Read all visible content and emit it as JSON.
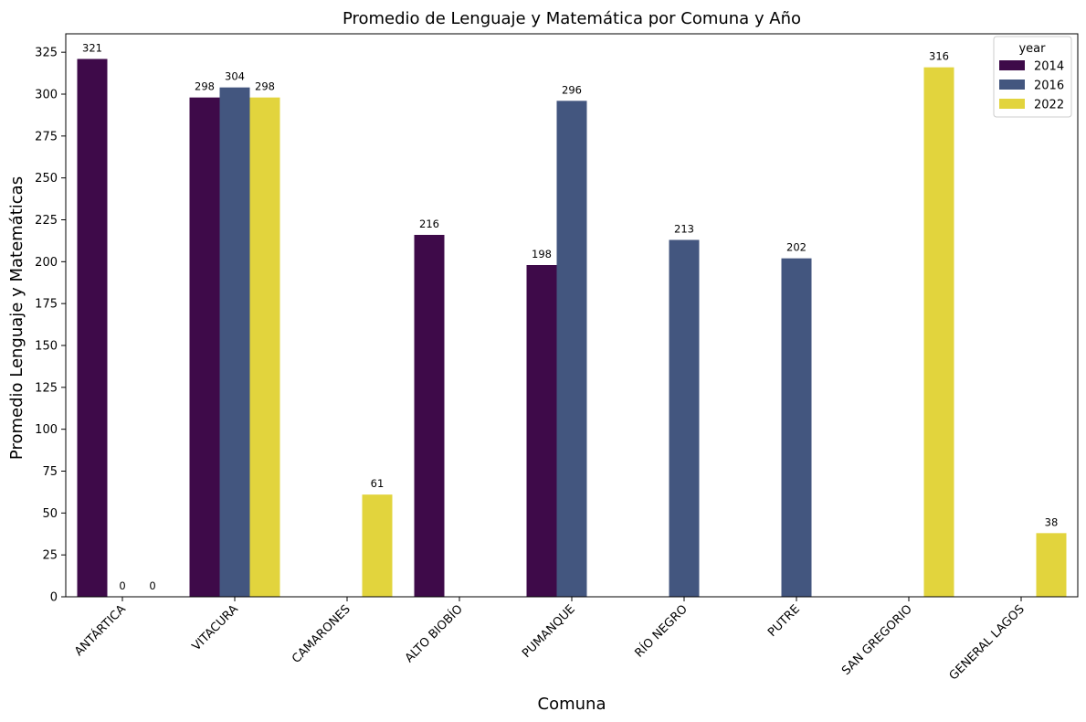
{
  "chart_data": {
    "type": "bar",
    "title": "Promedio de Lenguaje y Matemática por Comuna y Año",
    "xlabel": "Comuna",
    "ylabel": "Promedio Lenguaje y Matemáticas",
    "ylim": [
      0,
      336
    ],
    "yticks": [
      0,
      25,
      50,
      75,
      100,
      125,
      150,
      175,
      200,
      225,
      250,
      275,
      300,
      325
    ],
    "categories": [
      "ANTÁRTICA",
      "VITACURA",
      "CAMARONES",
      "ALTO BIOBÍO",
      "PUMANQUE",
      "RÍO NEGRO",
      "PUTRE",
      "SAN GREGORIO",
      "GENERAL LAGOS"
    ],
    "legend_title": "year",
    "legend_position": "top-right",
    "grid": false,
    "series": [
      {
        "name": "2014",
        "color": "#440154",
        "bar_color": "#3e0a49",
        "values": [
          321,
          298,
          null,
          216,
          198,
          null,
          null,
          null,
          null
        ],
        "labels": [
          "321",
          "298",
          null,
          "216",
          "198",
          null,
          null,
          null,
          null
        ]
      },
      {
        "name": "2016",
        "color": "#3b528b",
        "bar_color": "#43567f",
        "values": [
          0,
          304,
          null,
          null,
          296,
          213,
          202,
          null,
          null
        ],
        "labels": [
          "0",
          "304",
          null,
          null,
          "296",
          "213",
          "202",
          null,
          null
        ]
      },
      {
        "name": "2022",
        "color": "#fde725",
        "bar_color": "#e2d43d",
        "values": [
          0,
          298,
          61,
          null,
          null,
          null,
          null,
          316,
          38
        ],
        "labels": [
          "0",
          "298",
          "61",
          null,
          null,
          null,
          null,
          "316",
          "38"
        ]
      }
    ]
  }
}
